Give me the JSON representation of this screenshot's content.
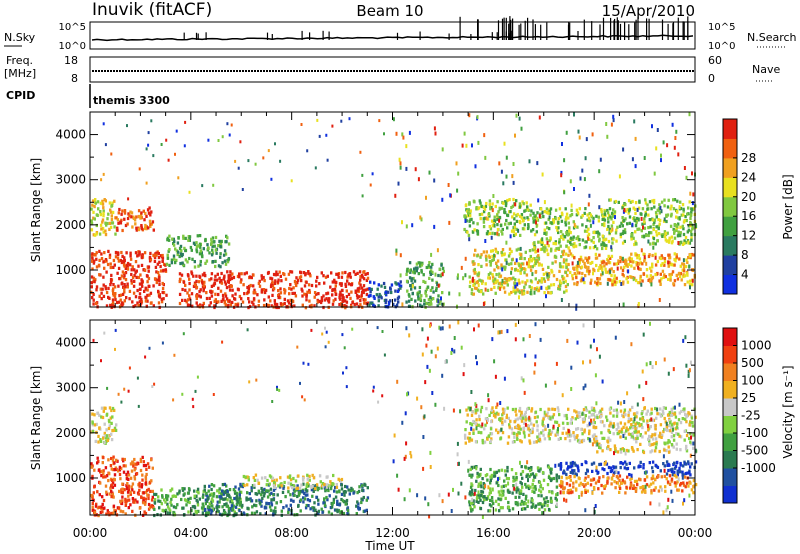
{
  "header": {
    "station": "Inuvik (fitACF)",
    "beam": "Beam 10",
    "date": "15/Apr/2010"
  },
  "nsky_panel": {
    "left_label": "N.Sky",
    "right_label": "N.Search",
    "left_ticks": [
      "10^5",
      "10^0"
    ],
    "right_ticks": [
      "10^5",
      "10^0"
    ]
  },
  "freq_panel": {
    "left_label_1": "Freq.",
    "left_label_2": "[MHz]",
    "right_label": "Nave",
    "left_ticks": [
      "18",
      "8"
    ],
    "right_ticks": [
      "60",
      "0"
    ]
  },
  "cpid_panel": {
    "label": "CPID",
    "mode": "themis 3300"
  },
  "x_axis": {
    "label": "Time UT",
    "ticks": [
      "00:00",
      "04:00",
      "08:00",
      "12:00",
      "16:00",
      "20:00",
      "00:00"
    ]
  },
  "chart_data": [
    {
      "type": "heatmap",
      "name": "power",
      "title": "",
      "ylabel": "Slant Range [km]",
      "xlabel": "",
      "ylim": [
        180,
        4500
      ],
      "xlim_hours": [
        0,
        24
      ],
      "yticks": [
        "1000",
        "2000",
        "3000",
        "4000"
      ],
      "colorbar": {
        "label": "Power [dB]",
        "ticks": [
          "4",
          "8",
          "12",
          "16",
          "20",
          "24",
          "28"
        ],
        "colors": [
          "#1030e0",
          "#2040a0",
          "#2a7a60",
          "#40a040",
          "#80c840",
          "#e8e020",
          "#f0a020",
          "#f06010",
          "#e02010"
        ]
      },
      "regions": [
        {
          "t0": 0.0,
          "t1": 1.0,
          "r0": 1800,
          "r1": 2600,
          "level": 5
        },
        {
          "t0": 1.0,
          "t1": 2.5,
          "r0": 1900,
          "r1": 2450,
          "level": 7
        },
        {
          "t0": 0.0,
          "t1": 3.0,
          "r0": 200,
          "r1": 1450,
          "level": 8
        },
        {
          "t0": 3.0,
          "t1": 5.5,
          "r0": 1100,
          "r1": 1800,
          "level": 3
        },
        {
          "t0": 3.5,
          "t1": 11.0,
          "r0": 200,
          "r1": 1000,
          "level": 8
        },
        {
          "t0": 11.0,
          "t1": 12.3,
          "r0": 200,
          "r1": 800,
          "level": 1
        },
        {
          "t0": 12.5,
          "t1": 14.0,
          "r0": 200,
          "r1": 1200,
          "level": 3
        },
        {
          "t0": 14.8,
          "t1": 17.5,
          "r0": 1800,
          "r1": 2600,
          "level": 4
        },
        {
          "t0": 15.0,
          "t1": 19.0,
          "r0": 500,
          "r1": 1500,
          "level": 5
        },
        {
          "t0": 17.5,
          "t1": 20.5,
          "r0": 1500,
          "r1": 2400,
          "level": 4
        },
        {
          "t0": 19.0,
          "t1": 24.0,
          "r0": 700,
          "r1": 1400,
          "level": 6
        },
        {
          "t0": 20.5,
          "t1": 24.0,
          "r0": 1600,
          "r1": 2600,
          "level": 4
        }
      ]
    },
    {
      "type": "heatmap",
      "name": "velocity",
      "title": "",
      "ylabel": "Slant Range [km]",
      "xlabel": "Time UT",
      "ylim": [
        180,
        4500
      ],
      "xlim_hours": [
        0,
        24
      ],
      "yticks": [
        "1000",
        "2000",
        "3000",
        "4000"
      ],
      "colorbar": {
        "label": "Velocity [m s⁻¹]",
        "ticks": [
          "1000",
          "500",
          "100",
          "25",
          "-25",
          "-100",
          "-500",
          "-1000"
        ],
        "colors": [
          "#1030d0",
          "#2050a0",
          "#2a7a50",
          "#40a040",
          "#80d040",
          "#c8c8c8",
          "#f0b020",
          "#f08020",
          "#f04010",
          "#e01010"
        ]
      },
      "regions": [
        {
          "t0": 0.0,
          "t1": 1.0,
          "r0": 1800,
          "r1": 2600,
          "level": 5
        },
        {
          "t0": 0.0,
          "t1": 2.5,
          "r0": 200,
          "r1": 1500,
          "level": 8
        },
        {
          "t0": 2.5,
          "t1": 6.0,
          "r0": 200,
          "r1": 800,
          "level": 3
        },
        {
          "t0": 4.5,
          "t1": 11.0,
          "r0": 200,
          "r1": 900,
          "level": 2
        },
        {
          "t0": 6.0,
          "t1": 10.0,
          "r0": 800,
          "r1": 1100,
          "level": 5
        },
        {
          "t0": 14.8,
          "t1": 20.0,
          "r0": 1800,
          "r1": 2600,
          "level": 5
        },
        {
          "t0": 15.0,
          "t1": 18.5,
          "r0": 300,
          "r1": 1300,
          "level": 3
        },
        {
          "t0": 18.5,
          "t1": 24.0,
          "r0": 1100,
          "r1": 1400,
          "level": 0
        },
        {
          "t0": 18.5,
          "t1": 24.0,
          "r0": 700,
          "r1": 1100,
          "level": 7
        },
        {
          "t0": 20.0,
          "t1": 24.0,
          "r0": 1600,
          "r1": 2600,
          "level": 5
        }
      ]
    }
  ]
}
